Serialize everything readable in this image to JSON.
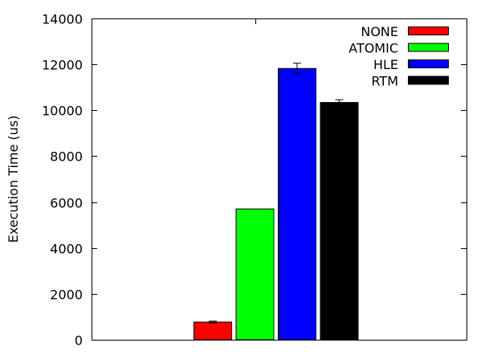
{
  "chart_data": {
    "type": "bar",
    "title": "",
    "xlabel": "",
    "ylabel": "Execution Time (us)",
    "ylim": [
      0,
      14000
    ],
    "yticks": [
      0,
      2000,
      4000,
      6000,
      8000,
      10000,
      12000,
      14000
    ],
    "grid": false,
    "legend_position": "top-right",
    "categories": [
      ""
    ],
    "series": [
      {
        "name": "NONE",
        "color": "#ff0000",
        "values": [
          770
        ],
        "error": [
          40
        ]
      },
      {
        "name": "ATOMIC",
        "color": "#00ff00",
        "values": [
          5700
        ],
        "error": [
          0
        ]
      },
      {
        "name": "HLE",
        "color": "#0000ff",
        "values": [
          11820
        ],
        "error": [
          230
        ]
      },
      {
        "name": "RTM",
        "color": "#000000",
        "values": [
          10340
        ],
        "error": [
          120
        ]
      }
    ]
  }
}
